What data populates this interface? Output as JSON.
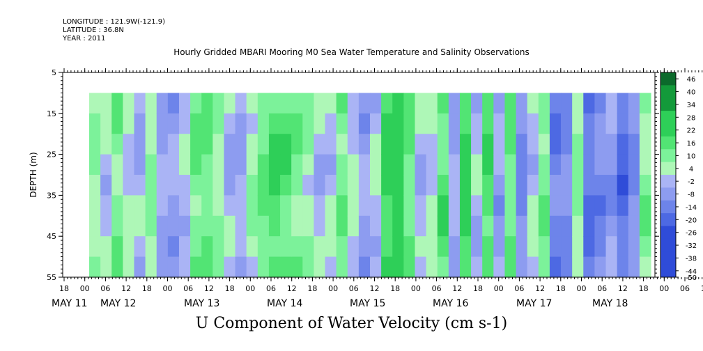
{
  "header": {
    "longitude": "LONGITUDE : 121.9W(-121.9)",
    "latitude": "LATITUDE : 36.8N",
    "year": "YEAR : 2011"
  },
  "chart_data": {
    "type": "heatmap",
    "title": "Hourly Gridded MBARI Mooring M0 Sea Water Temperature and Salinity Observations",
    "xlabel": "U Component of Water Velocity (cm s-1)",
    "ylabel": "DEPTH (m)",
    "ylim": [
      55,
      5
    ],
    "y_ticks": [
      5,
      15,
      25,
      35,
      45,
      55
    ],
    "x_hour_ticks": [
      "18",
      "00",
      "06",
      "12",
      "18",
      "00",
      "06",
      "12",
      "18",
      "00",
      "06",
      "12",
      "18",
      "00",
      "06",
      "12",
      "18",
      "00",
      "06",
      "12",
      "18",
      "00",
      "06",
      "12",
      "18",
      "00",
      "06",
      "12",
      "18",
      "00",
      "06",
      "12",
      "18"
    ],
    "x_day_labels": [
      "MAY 11",
      "MAY 12",
      "MAY 13",
      "MAY 14",
      "MAY 15",
      "MAY 16",
      "MAY 17",
      "MAY 18"
    ],
    "data_start_depth": 10,
    "data_end_depth": 55,
    "colorbar_levels": [
      46,
      40,
      34,
      28,
      22,
      16,
      10,
      4,
      -2,
      -8,
      -14,
      -20,
      -26,
      -32,
      -38,
      -44,
      -50
    ],
    "columns": [
      {
        "t": 0,
        "v": 3
      },
      {
        "t": 1,
        "v": -4
      },
      {
        "t": 2,
        "v": 6
      },
      {
        "t": 3,
        "v": -2
      },
      {
        "t": 4,
        "v": -6
      },
      {
        "t": 5,
        "v": 4
      },
      {
        "t": 6,
        "v": -8
      },
      {
        "t": 7,
        "v": -10
      },
      {
        "t": 8,
        "v": -4
      },
      {
        "t": 9,
        "v": 8
      },
      {
        "t": 10,
        "v": 10
      },
      {
        "t": 11,
        "v": 3
      },
      {
        "t": 12,
        "v": -6
      },
      {
        "t": 13,
        "v": -8
      },
      {
        "t": 14,
        "v": 2
      },
      {
        "t": 15,
        "v": 10
      },
      {
        "t": 16,
        "v": 14
      },
      {
        "t": 17,
        "v": 12
      },
      {
        "t": 18,
        "v": 6
      },
      {
        "t": 19,
        "v": 2
      },
      {
        "t": 20,
        "v": -6
      },
      {
        "t": 21,
        "v": -4
      },
      {
        "t": 22,
        "v": 8
      },
      {
        "t": 23,
        "v": -2
      },
      {
        "t": 24,
        "v": -10
      },
      {
        "t": 25,
        "v": -4
      },
      {
        "t": 26,
        "v": 16
      },
      {
        "t": 27,
        "v": 22
      },
      {
        "t": 28,
        "v": 10
      },
      {
        "t": 29,
        "v": -6
      },
      {
        "t": 30,
        "v": -2
      },
      {
        "t": 31,
        "v": 12
      },
      {
        "t": 32,
        "v": -8
      },
      {
        "t": 33,
        "v": 18
      },
      {
        "t": 34,
        "v": -6
      },
      {
        "t": 35,
        "v": 14
      },
      {
        "t": 36,
        "v": -10
      },
      {
        "t": 37,
        "v": 10
      },
      {
        "t": 38,
        "v": -14
      },
      {
        "t": 39,
        "v": -4
      },
      {
        "t": 40,
        "v": 8
      },
      {
        "t": 41,
        "v": -18
      },
      {
        "t": 42,
        "v": -14
      },
      {
        "t": 43,
        "v": 4
      },
      {
        "t": 44,
        "v": -20
      },
      {
        "t": 45,
        "v": -16
      },
      {
        "t": 46,
        "v": -12
      },
      {
        "t": 47,
        "v": -22
      },
      {
        "t": 48,
        "v": -14
      },
      {
        "t": 49,
        "v": 6
      }
    ]
  }
}
